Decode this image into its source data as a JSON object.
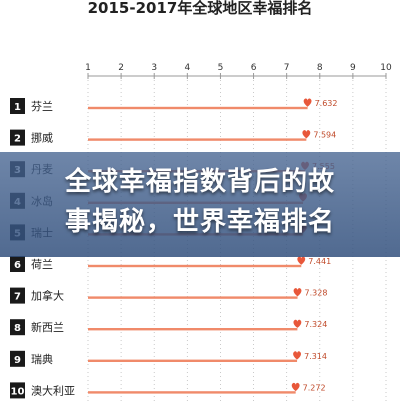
{
  "headline": {
    "line1": "全球幸福指数背后的故",
    "line2": "事揭秘，世界幸福排名"
  },
  "chart_data": {
    "type": "bar",
    "title": "2015-2017年全球地区幸福排名",
    "xlim": [
      1,
      10
    ],
    "xticks": [
      1,
      2,
      3,
      4,
      5,
      6,
      7,
      8,
      9,
      10
    ],
    "ranks": [
      "1",
      "2",
      "3",
      "4",
      "5",
      "6",
      "7",
      "8",
      "9",
      "10"
    ],
    "categories": [
      "芬兰",
      "挪威",
      "丹麦",
      "冰岛",
      "瑞士",
      "荷兰",
      "加拿大",
      "新西兰",
      "瑞典",
      "澳大利亚"
    ],
    "values": [
      7.632,
      7.594,
      7.555,
      7.495,
      7.487,
      7.441,
      7.328,
      7.324,
      7.314,
      7.272
    ],
    "value_labels": [
      "7.632",
      "7.594",
      "7.555",
      "",
      "",
      "7.441",
      "7.328",
      "7.324",
      "7.314",
      "7.272"
    ],
    "marker": "heart-icon",
    "colors": {
      "bar": "#f08a6a",
      "heart": "#e8573a",
      "rank_box": "#1a1a1a",
      "grid": "#bdbdbd"
    }
  }
}
